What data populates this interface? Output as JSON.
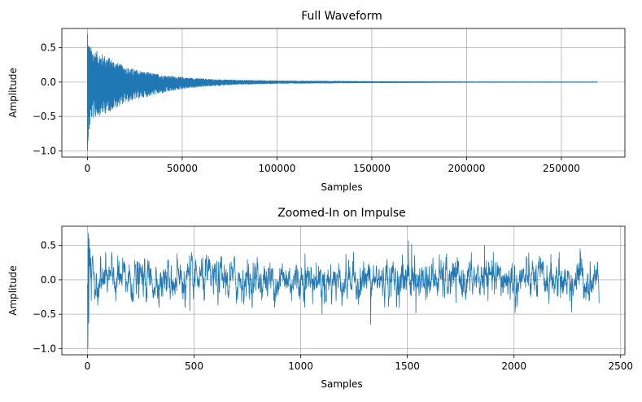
{
  "chart_data": [
    {
      "type": "line",
      "title": "Full Waveform",
      "xlabel": "Samples",
      "ylabel": "Amplitude",
      "xlim": [
        -13500,
        283500
      ],
      "ylim": [
        -1.09,
        0.78
      ],
      "grid": true,
      "xticks": [
        0,
        50000,
        100000,
        150000,
        200000,
        250000
      ],
      "xtick_labels": [
        "0",
        "50000",
        "100000",
        "150000",
        "200000",
        "250000"
      ],
      "yticks": [
        -1.0,
        -0.5,
        0.0,
        0.5
      ],
      "ytick_labels": [
        "−1.0",
        "−0.5",
        "0.0",
        "0.5"
      ],
      "series": [
        {
          "color": "#1f77b4",
          "n_samples": 269000,
          "envelope": {
            "x": [
              0,
              1000,
              2000,
              5000,
              10000,
              15000,
              20000,
              30000,
              40000,
              50000,
              60000,
              70000,
              80000,
              100000,
              150000,
              200000,
              269000
            ],
            "upper": [
              0.7,
              0.55,
              0.5,
              0.45,
              0.38,
              0.3,
              0.22,
              0.15,
              0.1,
              0.07,
              0.05,
              0.035,
              0.03,
              0.02,
              0.01,
              0.005,
              0.003
            ],
            "lower": [
              -1.0,
              -0.75,
              -0.55,
              -0.5,
              -0.45,
              -0.38,
              -0.3,
              -0.22,
              -0.16,
              -0.1,
              -0.07,
              -0.05,
              -0.035,
              -0.02,
              -0.01,
              -0.005,
              -0.003
            ]
          }
        }
      ]
    },
    {
      "type": "line",
      "title": "Zoomed-In on Impulse",
      "xlabel": "Samples",
      "ylabel": "Amplitude",
      "xlim": [
        -120,
        2520
      ],
      "ylim": [
        -1.09,
        0.78
      ],
      "grid": true,
      "xticks": [
        0,
        500,
        1000,
        1500,
        2000,
        2500
      ],
      "xtick_labels": [
        "0",
        "500",
        "1000",
        "1500",
        "2000",
        "2500"
      ],
      "yticks": [
        -1.0,
        -0.5,
        0.0,
        0.5
      ],
      "ytick_labels": [
        "−1.0",
        "−0.5",
        "0.0",
        "0.5"
      ],
      "series": [
        {
          "color": "#1f77b4",
          "n_samples": 2400,
          "spikes": [
            {
              "x": 2,
              "y": -1.0
            },
            {
              "x": 4,
              "y": 0.68
            },
            {
              "x": 6,
              "y": -0.63
            },
            {
              "x": 8,
              "y": 0.6
            },
            {
              "x": 12,
              "y": 0.45
            },
            {
              "x": 18,
              "y": -0.3
            },
            {
              "x": 420,
              "y": 0.38
            },
            {
              "x": 480,
              "y": -0.45
            },
            {
              "x": 1020,
              "y": 0.38
            },
            {
              "x": 1100,
              "y": -0.5
            },
            {
              "x": 1328,
              "y": -0.65
            },
            {
              "x": 1505,
              "y": 0.57
            },
            {
              "x": 1520,
              "y": 0.52
            },
            {
              "x": 1540,
              "y": -0.48
            },
            {
              "x": 1862,
              "y": 0.5
            },
            {
              "x": 2005,
              "y": -0.48
            },
            {
              "x": 2270,
              "y": -0.47
            },
            {
              "x": 2310,
              "y": 0.45
            }
          ],
          "typical_range": [
            -0.35,
            0.35
          ]
        }
      ]
    }
  ]
}
